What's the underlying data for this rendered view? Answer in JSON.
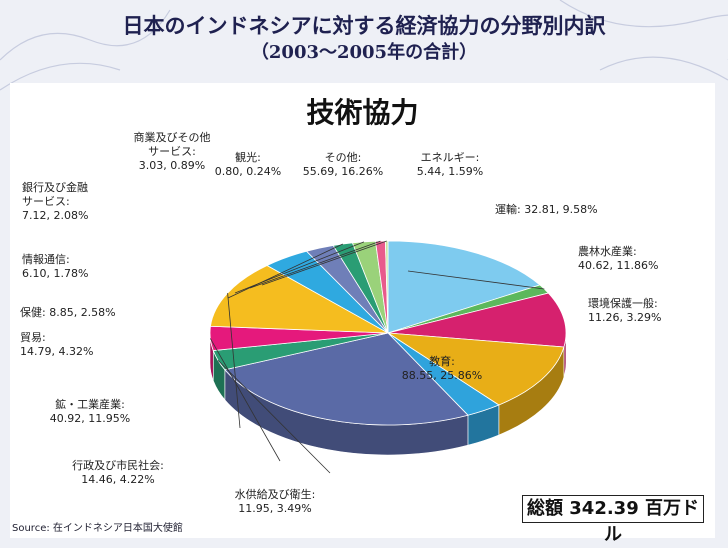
{
  "slide": {
    "title_line1": "日本のインドネシアに対する経済協力の分野別内訳",
    "title_line2": "（2003～2005年の合計）"
  },
  "chart_data": {
    "type": "pie",
    "title": "技術協力",
    "series": [
      {
        "label": "その他",
        "value": 55.69,
        "percent": 16.26,
        "label_text": "その他:\n55.69, 16.26%",
        "color": "#7ecbef"
      },
      {
        "label": "エネルギー",
        "value": 5.44,
        "percent": 1.59,
        "label_text": "エネルギー:\n5.44, 1.59%",
        "color": "#5cb85c"
      },
      {
        "label": "運輸",
        "value": 32.81,
        "percent": 9.58,
        "label_text": "運輸: 32.81, 9.58%",
        "color": "#d6216e"
      },
      {
        "label": "農林水産業",
        "value": 40.62,
        "percent": 11.86,
        "label_text": "農林水産業:\n40.62, 11.86%",
        "color": "#e8ae17"
      },
      {
        "label": "環境保護一般",
        "value": 11.26,
        "percent": 3.29,
        "label_text": "環境保護一般:\n11.26, 3.29%",
        "color": "#2fa3dc"
      },
      {
        "label": "教育",
        "value": 88.55,
        "percent": 25.86,
        "label_text": "教育:\n88.55, 25.86%",
        "color": "#5a6aa6"
      },
      {
        "label": "水供給及び衛生",
        "value": 11.95,
        "percent": 3.49,
        "label_text": "水供給及び衛生:\n11.95, 3.49%",
        "color": "#2a9d74"
      },
      {
        "label": "行政及び市民社会",
        "value": 14.46,
        "percent": 4.22,
        "label_text": "行政及び市民社会:\n14.46, 4.22%",
        "color": "#e5197c"
      },
      {
        "label": "鉱・工業産業",
        "value": 40.92,
        "percent": 11.95,
        "label_text": "鉱・工業産業:\n40.92, 11.95%",
        "color": "#f5bd1f"
      },
      {
        "label": "貿易",
        "value": 14.79,
        "percent": 4.32,
        "label_text": "貿易:\n14.79, 4.32%",
        "color": "#2fa9e0"
      },
      {
        "label": "保健",
        "value": 8.85,
        "percent": 2.58,
        "label_text": "保健: 8.85, 2.58%",
        "color": "#6f7fb8"
      },
      {
        "label": "情報通信",
        "value": 6.1,
        "percent": 1.78,
        "label_text": "情報通信:\n6.10, 1.78%",
        "color": "#2a9d74"
      },
      {
        "label": "銀行及び金融サービス",
        "value": 7.12,
        "percent": 2.08,
        "label_text": "銀行及び金融\nサービス:\n7.12, 2.08%",
        "color": "#9ad27a"
      },
      {
        "label": "商業及びその他サービス",
        "value": 3.03,
        "percent": 0.89,
        "label_text": "商業及びその他\nサービス:\n3.03, 0.89%",
        "color": "#e85a8c"
      },
      {
        "label": "観光",
        "value": 0.8,
        "percent": 0.24,
        "label_text": "観光:\n0.80, 0.24%",
        "color": "#c8e6a0"
      }
    ],
    "total_label": "総額 342.39 百万ドル"
  },
  "footer": {
    "source_prefix": "Source:",
    "source_text": "在インドネシア日本国大使館"
  }
}
